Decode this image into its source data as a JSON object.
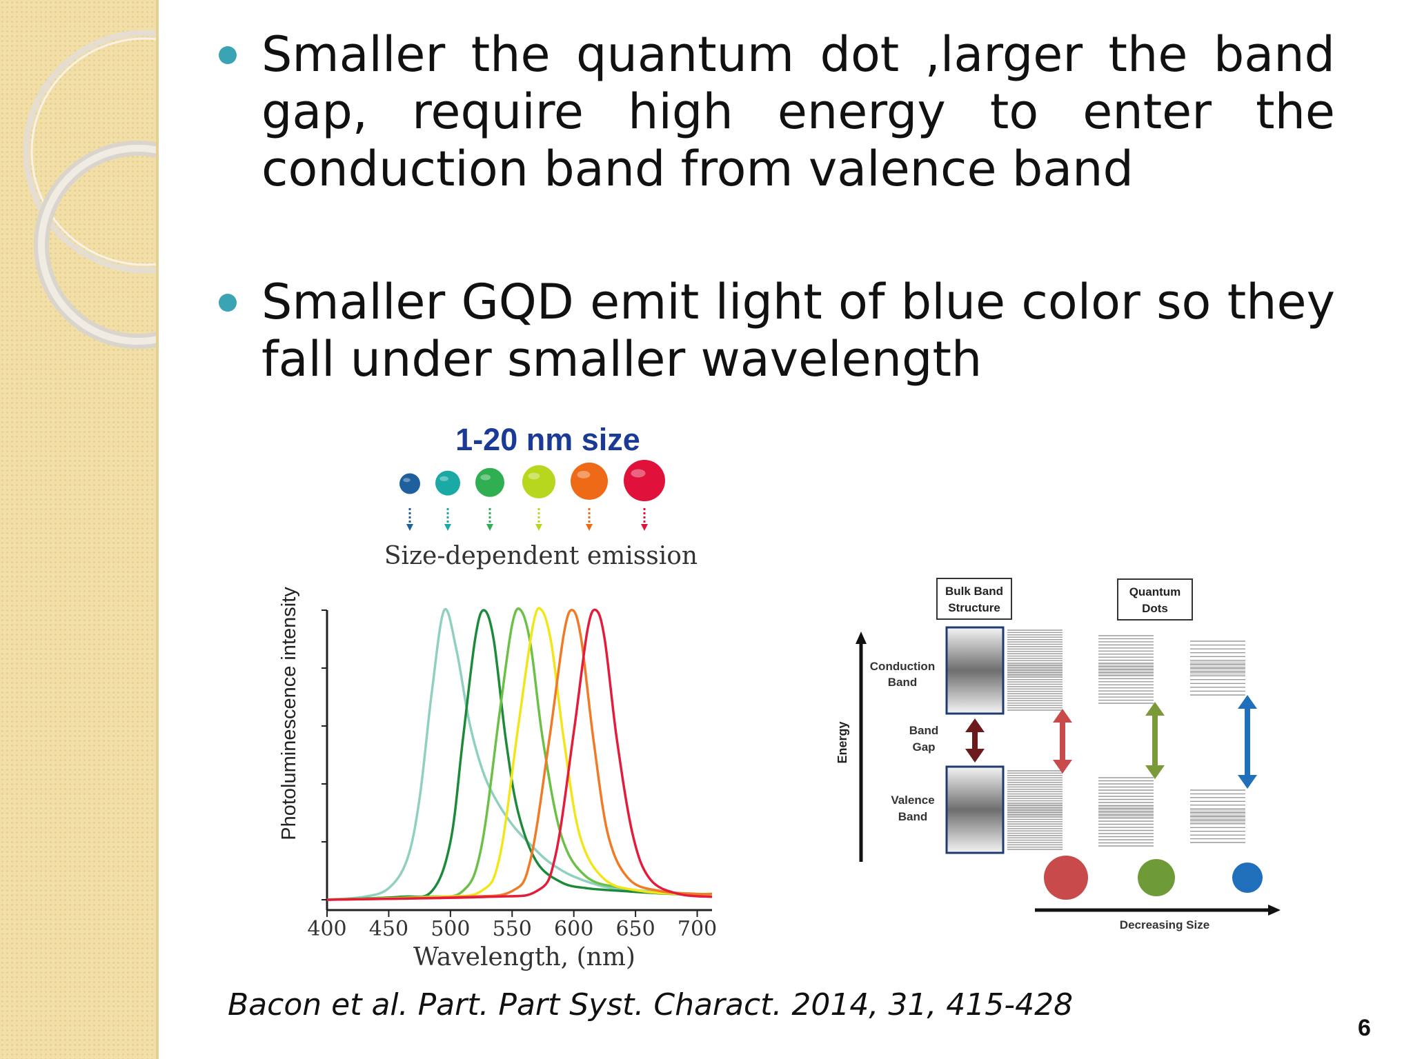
{
  "bullets": [
    "Smaller the quantum dot ,larger the band gap, require high energy to enter the conduction band from valence band",
    "Smaller GQD emit light of blue color so they fall under smaller wavelength"
  ],
  "figure_left": {
    "size_label": "1-20 nm size",
    "emission_label": "Size-dependent emission",
    "dot_colors": [
      "#1e5f9e",
      "#1aa9a4",
      "#2fae52",
      "#b7d71e",
      "#ee6a17",
      "#e0123c"
    ]
  },
  "chart_data": {
    "type": "line",
    "title": "",
    "xlabel": "Wavelength, (nm)",
    "ylabel": "Photoluminescence  intensity",
    "xlim": [
      400,
      712
    ],
    "xticks": [
      400,
      450,
      500,
      550,
      600,
      650,
      700
    ],
    "ylim": [
      0,
      1
    ],
    "series": [
      {
        "color": "#8fd0c0",
        "x": [
          400,
          430,
          450,
          465,
          475,
          485,
          495,
          505,
          515,
          525,
          535,
          550,
          565,
          580,
          600,
          630,
          660,
          700,
          712
        ],
        "y": [
          0.0,
          0.01,
          0.04,
          0.14,
          0.35,
          0.72,
          1.0,
          0.86,
          0.62,
          0.46,
          0.36,
          0.26,
          0.19,
          0.13,
          0.08,
          0.04,
          0.03,
          0.02,
          0.02
        ]
      },
      {
        "color": "#1c8a3a",
        "x": [
          400,
          460,
          485,
          500,
          510,
          520,
          527,
          535,
          545,
          555,
          570,
          590,
          610,
          640,
          680,
          712
        ],
        "y": [
          0.0,
          0.01,
          0.03,
          0.2,
          0.55,
          0.9,
          1.0,
          0.9,
          0.55,
          0.3,
          0.13,
          0.06,
          0.04,
          0.03,
          0.02,
          0.02
        ]
      },
      {
        "color": "#6cc047",
        "x": [
          400,
          480,
          510,
          525,
          540,
          550,
          557,
          565,
          575,
          590,
          610,
          640,
          680,
          712
        ],
        "y": [
          0.0,
          0.01,
          0.03,
          0.18,
          0.65,
          0.95,
          1.0,
          0.88,
          0.55,
          0.22,
          0.08,
          0.04,
          0.02,
          0.02
        ]
      },
      {
        "color": "#f2e61a",
        "x": [
          400,
          490,
          525,
          540,
          555,
          567,
          574,
          582,
          592,
          605,
          625,
          655,
          690,
          712
        ],
        "y": [
          0.0,
          0.01,
          0.03,
          0.15,
          0.6,
          0.95,
          1.0,
          0.88,
          0.55,
          0.22,
          0.07,
          0.03,
          0.02,
          0.02
        ]
      },
      {
        "color": "#f07a26",
        "x": [
          400,
          510,
          550,
          565,
          580,
          592,
          599,
          606,
          616,
          628,
          645,
          670,
          700,
          712
        ],
        "y": [
          0.0,
          0.01,
          0.03,
          0.14,
          0.55,
          0.92,
          1.0,
          0.9,
          0.55,
          0.22,
          0.07,
          0.03,
          0.02,
          0.02
        ]
      },
      {
        "color": "#e41c3c",
        "x": [
          400,
          530,
          570,
          585,
          600,
          611,
          618,
          625,
          635,
          648,
          662,
          685,
          712
        ],
        "y": [
          0.0,
          0.01,
          0.03,
          0.15,
          0.58,
          0.93,
          1.0,
          0.9,
          0.55,
          0.22,
          0.07,
          0.02,
          0.01
        ]
      }
    ]
  },
  "figure_right": {
    "bulk_title_1": "Bulk Band",
    "bulk_title_2": "Structure",
    "qd_title_1": "Quantum",
    "qd_title_2": "Dots",
    "energy_label": "Energy",
    "conduction_1": "Conduction",
    "conduction_2": "Band",
    "gap_1": "Band",
    "gap_2": "Gap",
    "valence_1": "Valence",
    "valence_2": "Band",
    "decreasing_label": "Decreasing Size",
    "arrow_colors": [
      "#6b1b1b",
      "#c94a4a",
      "#7a9a3a",
      "#1f6fba"
    ],
    "qd_dot_colors": [
      "#c94a4a",
      "#6f9a38",
      "#1f6fba"
    ]
  },
  "citation": "Bacon et al. Part. Part Syst. Charact. 2014, 31, 415-428",
  "page_number": "6"
}
